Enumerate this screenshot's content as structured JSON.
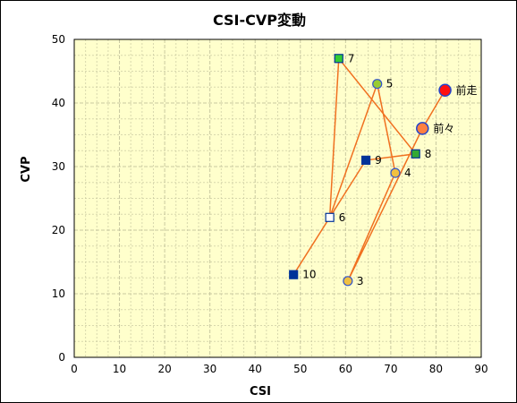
{
  "chart_data": {
    "type": "scatter",
    "title": "CSI-CVP変動",
    "xlabel": "CSI",
    "ylabel": "CVP",
    "xlim": [
      0,
      90
    ],
    "ylim": [
      0,
      50
    ],
    "xticks": [
      0,
      10,
      20,
      30,
      40,
      50,
      60,
      70,
      80,
      90
    ],
    "yticks": [
      0,
      10,
      20,
      30,
      40,
      50
    ],
    "grid": true,
    "colors": {
      "plot_background": "#ffffcc",
      "grid": "#c8c8a0",
      "line": "#f07020",
      "square_navy": "#003399",
      "square_green": "#33cc33",
      "circle_orange": "#ff8040",
      "circle_red": "#ff1010",
      "circle_yellow": "#f0c040",
      "circle_olive": "#99cc33"
    },
    "points": [
      {
        "label": "前走",
        "x": 82,
        "y": 42,
        "marker": "circle-large",
        "fill": "#ff1010",
        "stroke": "#2244cc"
      },
      {
        "label": "前々",
        "x": 77,
        "y": 36,
        "marker": "circle-large",
        "fill": "#ff8040",
        "stroke": "#2244cc"
      },
      {
        "label": "3",
        "x": 60.5,
        "y": 12,
        "marker": "circle",
        "fill": "#f0c040",
        "stroke": "#3355cc"
      },
      {
        "label": "4",
        "x": 71,
        "y": 29,
        "marker": "circle",
        "fill": "#f0c040",
        "stroke": "#3355cc"
      },
      {
        "label": "5",
        "x": 67,
        "y": 43,
        "marker": "circle",
        "fill": "#99cc33",
        "stroke": "#3355cc"
      },
      {
        "label": "6",
        "x": 56.5,
        "y": 22,
        "marker": "square",
        "fill": "#ffffff",
        "stroke": "#003399"
      },
      {
        "label": "7",
        "x": 58.5,
        "y": 47,
        "marker": "square",
        "fill": "#33cc33",
        "stroke": "#003399"
      },
      {
        "label": "8",
        "x": 75.5,
        "y": 32,
        "marker": "square",
        "fill": "#33aa33",
        "stroke": "#003399"
      },
      {
        "label": "9",
        "x": 64.5,
        "y": 31,
        "marker": "square",
        "fill": "#003399",
        "stroke": "#003399"
      },
      {
        "label": "10",
        "x": 48.5,
        "y": 13,
        "marker": "square",
        "fill": "#003399",
        "stroke": "#003399"
      }
    ]
  }
}
